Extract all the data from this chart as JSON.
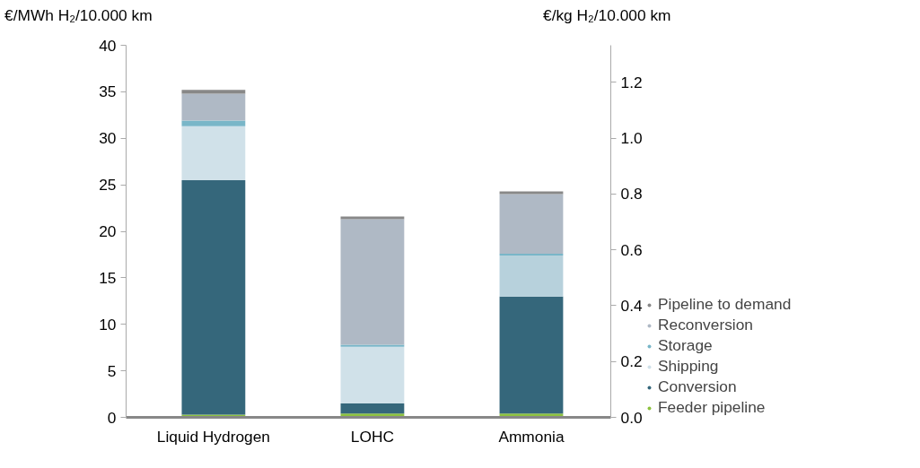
{
  "chart_data": {
    "type": "bar",
    "stacked": true,
    "ylabel": "€/MWh H₂/10.000 km",
    "y2label": "€/kg H₂/10.000 km",
    "categories": [
      "Liquid Hydrogen",
      "LOHC",
      "Ammonia"
    ],
    "series": [
      {
        "name": "Feeder pipeline",
        "color": "#8dc23f",
        "values": [
          0.3,
          0.4,
          0.4
        ]
      },
      {
        "name": "Conversion",
        "color": "#35677b",
        "values": [
          25.2,
          1.1,
          12.6
        ]
      },
      {
        "name": "Shipping",
        "color": "#d0e1e9",
        "colors": [
          null,
          null,
          "#b7d1dc"
        ],
        "values": [
          5.8,
          6.1,
          4.4
        ]
      },
      {
        "name": "Storage",
        "color": "#79b6c8",
        "values": [
          0.6,
          0.2,
          0.2
        ]
      },
      {
        "name": "Reconversion",
        "color": "#afb9c5",
        "values": [
          2.9,
          13.5,
          6.4
        ]
      },
      {
        "name": "Pipeline to demand",
        "color": "#888888",
        "values": [
          0.4,
          0.3,
          0.3
        ]
      }
    ],
    "ylim": [
      0,
      40
    ],
    "yticks": [
      0,
      5,
      10,
      15,
      20,
      25,
      30,
      35,
      40
    ],
    "y2lim": [
      0,
      1.3333
    ],
    "y2ticks": [
      {
        "value": 0,
        "label": "0.0"
      },
      0.2,
      0.4,
      0.6,
      0.8,
      {
        "value": 1,
        "label": "1.0"
      },
      1.2
    ],
    "grid": false,
    "legend": "bottom right"
  }
}
